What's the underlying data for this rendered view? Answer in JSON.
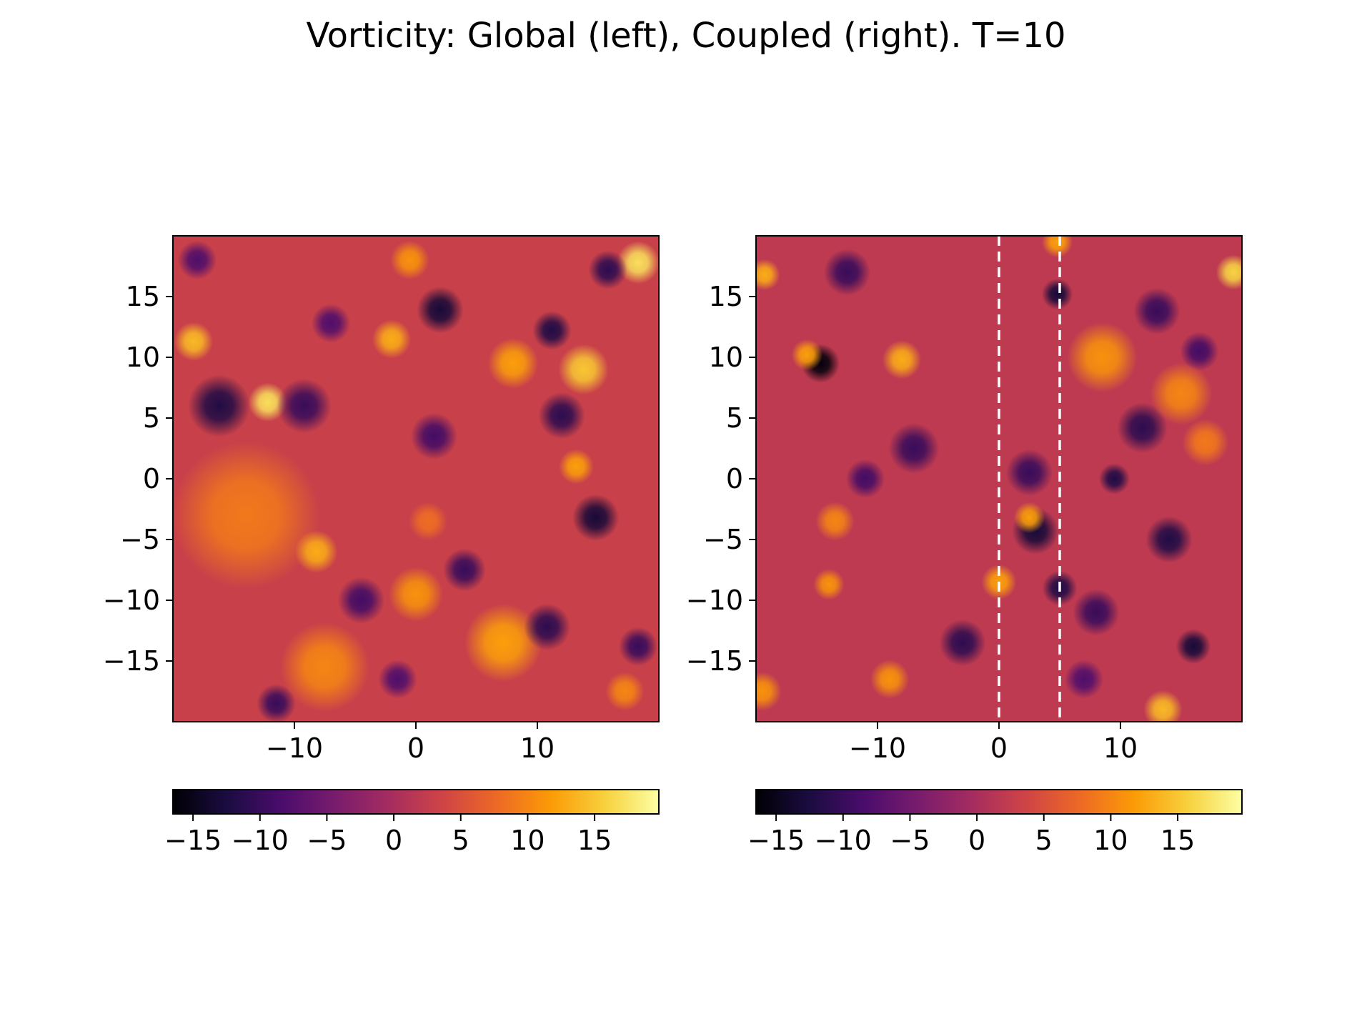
{
  "title": "Vorticity: Global (left), Coupled (right). T=10",
  "colormap": [
    "#000004",
    "#1b0c41",
    "#4a0c6b",
    "#781c6d",
    "#a52c60",
    "#cf4446",
    "#ed6925",
    "#fb9b06",
    "#f7d13d",
    "#fcffa4"
  ],
  "chart_data": [
    {
      "type": "heatmap",
      "name": "Global",
      "xlim": [
        -20,
        20
      ],
      "ylim": [
        -20,
        20
      ],
      "xticks": [
        -10,
        0,
        10
      ],
      "yticks": [
        15,
        10,
        5,
        0,
        -5,
        -10,
        -15
      ],
      "xtick_labels": [
        "−10",
        "0",
        "10"
      ],
      "ytick_labels": [
        "15",
        "10",
        "5",
        "0",
        "−5",
        "−10",
        "−15"
      ],
      "clim": [
        -16.5,
        19.8
      ],
      "colorbar": {
        "orientation": "horizontal",
        "location": "bottom",
        "ticks": [
          -15,
          -10,
          -5,
          0,
          5,
          10,
          15
        ],
        "tick_labels": [
          "−15",
          "−10",
          "−5",
          "0",
          "5",
          "10",
          "15"
        ]
      },
      "background_level": 3,
      "features": [
        {
          "x": -18.3,
          "y": 11.3,
          "v": 14,
          "r": 1.0
        },
        {
          "x": -12.2,
          "y": 6.3,
          "v": 17,
          "r": 1.0
        },
        {
          "x": -16.2,
          "y": 6.0,
          "v": -12,
          "r": 1.6
        },
        {
          "x": -9.2,
          "y": 6.0,
          "v": -10,
          "r": 1.4
        },
        {
          "x": -2.0,
          "y": 11.5,
          "v": 13,
          "r": 1.0
        },
        {
          "x": 2.0,
          "y": 13.9,
          "v": -13,
          "r": 1.2
        },
        {
          "x": 8.0,
          "y": 9.5,
          "v": 12,
          "r": 1.3
        },
        {
          "x": 11.2,
          "y": 12.2,
          "v": -12,
          "r": 1.0
        },
        {
          "x": 13.8,
          "y": 9.0,
          "v": 15,
          "r": 1.3
        },
        {
          "x": 18.3,
          "y": 17.8,
          "v": 17,
          "r": 1.1
        },
        {
          "x": 15.8,
          "y": 17.2,
          "v": -11,
          "r": 1.0
        },
        {
          "x": 12.0,
          "y": 5.2,
          "v": -11,
          "r": 1.2
        },
        {
          "x": 1.5,
          "y": 3.5,
          "v": -9,
          "r": 1.2
        },
        {
          "x": -14.0,
          "y": -3.0,
          "v": 9,
          "r": 3.8
        },
        {
          "x": -8.2,
          "y": -6.0,
          "v": 13,
          "r": 1.1
        },
        {
          "x": -4.5,
          "y": -10.0,
          "v": -9,
          "r": 1.2
        },
        {
          "x": 0.0,
          "y": -9.5,
          "v": 11,
          "r": 1.4
        },
        {
          "x": 4.0,
          "y": -7.5,
          "v": -10,
          "r": 1.1
        },
        {
          "x": 7.2,
          "y": -13.5,
          "v": 12,
          "r": 2.0
        },
        {
          "x": 10.8,
          "y": -12.2,
          "v": -11,
          "r": 1.2
        },
        {
          "x": 14.8,
          "y": -3.2,
          "v": -13,
          "r": 1.2
        },
        {
          "x": 13.2,
          "y": 1.0,
          "v": 12,
          "r": 0.9
        },
        {
          "x": -7.5,
          "y": -15.5,
          "v": 10,
          "r": 2.3
        },
        {
          "x": -11.5,
          "y": -18.5,
          "v": -10,
          "r": 1.0
        },
        {
          "x": -18.0,
          "y": 18.0,
          "v": -8,
          "r": 1.0
        },
        {
          "x": -7.0,
          "y": 12.8,
          "v": -8,
          "r": 1.0
        },
        {
          "x": -0.5,
          "y": 18.0,
          "v": 11,
          "r": 1.0
        },
        {
          "x": 18.3,
          "y": -13.8,
          "v": -10,
          "r": 1.0
        },
        {
          "x": 17.2,
          "y": -17.5,
          "v": 10,
          "r": 1.0
        },
        {
          "x": 1.0,
          "y": -3.5,
          "v": 8,
          "r": 1.0
        },
        {
          "x": -1.5,
          "y": -16.5,
          "v": -8,
          "r": 1.0
        }
      ]
    },
    {
      "type": "heatmap",
      "name": "Coupled",
      "xlim": [
        -20,
        20
      ],
      "ylim": [
        -20,
        20
      ],
      "xticks": [
        -10,
        0,
        10
      ],
      "yticks": [
        15,
        10,
        5,
        0,
        -5,
        -10,
        -15
      ],
      "xtick_labels": [
        "−10",
        "0",
        "10"
      ],
      "ytick_labels": [
        "15",
        "10",
        "5",
        "0",
        "−5",
        "−10",
        "−15"
      ],
      "clim": [
        -16.5,
        19.8
      ],
      "colorbar": {
        "orientation": "horizontal",
        "location": "bottom",
        "ticks": [
          -15,
          -10,
          -5,
          0,
          5,
          10,
          15
        ],
        "tick_labels": [
          "−15",
          "−10",
          "−5",
          "0",
          "5",
          "10",
          "15"
        ]
      },
      "vlines": {
        "x": [
          0,
          5
        ],
        "color": "#ffffff",
        "style": "dashed"
      },
      "background_level": 2,
      "features": [
        {
          "x": -14.7,
          "y": 9.5,
          "v": -16,
          "r": 1.0
        },
        {
          "x": -15.8,
          "y": 10.2,
          "v": 12,
          "r": 0.8
        },
        {
          "x": -8.0,
          "y": 9.8,
          "v": 13,
          "r": 1.0
        },
        {
          "x": -19.3,
          "y": 16.8,
          "v": 13,
          "r": 0.8
        },
        {
          "x": 19.3,
          "y": 17.0,
          "v": 16,
          "r": 0.9
        },
        {
          "x": -12.5,
          "y": 17.0,
          "v": -10,
          "r": 1.2
        },
        {
          "x": 4.8,
          "y": 15.2,
          "v": -13,
          "r": 0.8
        },
        {
          "x": 4.8,
          "y": 19.5,
          "v": 12,
          "r": 0.8
        },
        {
          "x": 8.5,
          "y": 10.0,
          "v": 11,
          "r": 1.8
        },
        {
          "x": 13.0,
          "y": 13.8,
          "v": -10,
          "r": 1.2
        },
        {
          "x": 16.5,
          "y": 10.5,
          "v": -9,
          "r": 1.0
        },
        {
          "x": 11.8,
          "y": 4.2,
          "v": -11,
          "r": 1.3
        },
        {
          "x": 15.0,
          "y": 7.0,
          "v": 10,
          "r": 1.6
        },
        {
          "x": -7.0,
          "y": 2.5,
          "v": -10,
          "r": 1.3
        },
        {
          "x": 2.5,
          "y": 0.5,
          "v": -10,
          "r": 1.2
        },
        {
          "x": 9.5,
          "y": 0.0,
          "v": -12,
          "r": 0.8
        },
        {
          "x": 3.0,
          "y": -4.3,
          "v": -13,
          "r": 1.2
        },
        {
          "x": 2.5,
          "y": -3.2,
          "v": 12,
          "r": 0.8
        },
        {
          "x": -14.0,
          "y": -8.7,
          "v": 11,
          "r": 0.8
        },
        {
          "x": -13.5,
          "y": -3.5,
          "v": 10,
          "r": 1.0
        },
        {
          "x": 0.0,
          "y": -8.5,
          "v": 12,
          "r": 0.9
        },
        {
          "x": 5.0,
          "y": -9.0,
          "v": -12,
          "r": 0.9
        },
        {
          "x": -3.0,
          "y": -13.5,
          "v": -11,
          "r": 1.2
        },
        {
          "x": 14.0,
          "y": -5.0,
          "v": -12,
          "r": 1.2
        },
        {
          "x": 16.0,
          "y": -13.8,
          "v": -13,
          "r": 0.9
        },
        {
          "x": 13.5,
          "y": -19.0,
          "v": 14,
          "r": 1.0
        },
        {
          "x": -19.5,
          "y": -17.5,
          "v": 11,
          "r": 1.0
        },
        {
          "x": -9.0,
          "y": -16.5,
          "v": 11,
          "r": 1.0
        },
        {
          "x": 8.0,
          "y": -11.0,
          "v": -10,
          "r": 1.2
        },
        {
          "x": -11.0,
          "y": 0.0,
          "v": -9,
          "r": 1.0
        },
        {
          "x": 7.0,
          "y": -16.5,
          "v": -8,
          "r": 1.0
        },
        {
          "x": 17.0,
          "y": 3.0,
          "v": 9,
          "r": 1.2
        }
      ]
    }
  ]
}
